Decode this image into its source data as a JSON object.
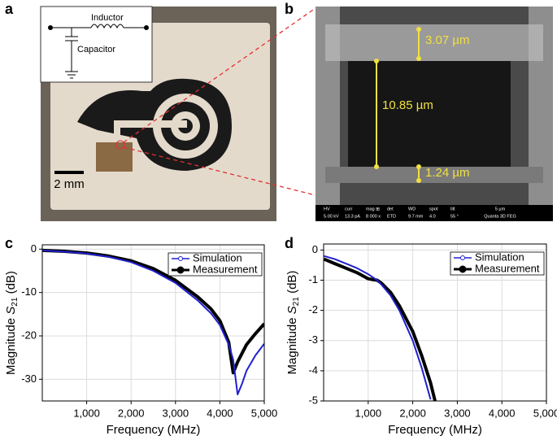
{
  "figure": {
    "panel_labels": [
      "a",
      "b",
      "c",
      "d"
    ],
    "inset": {
      "inductor": "Inductor",
      "capacitor": "Capacitor"
    },
    "scale_bar": "2 mm",
    "sem_labels": [
      "3.07 µm",
      "10.85 µm",
      "1.24 µm"
    ],
    "sem_info": {
      "headers": [
        "HV",
        "curr",
        "mag ⊞",
        "det",
        "WD",
        "spot",
        "tilt"
      ],
      "values": [
        "5.00 kV",
        "13.3 pA",
        "8 000 x",
        "ETD",
        "9.7 mm",
        "4.0",
        "55 °"
      ],
      "scale": "5 µm",
      "instrument": "Quanta 3D FEG"
    }
  },
  "chart_data": [
    {
      "type": "line",
      "xlabel": "Frequency (MHz)",
      "ylabel_prefix": "Magnitude",
      "ylabel_symbol": "S",
      "ylabel_subscript": "21",
      "ylabel_suffix": "(dB)",
      "x": [
        10,
        500,
        1000,
        1500,
        2000,
        2500,
        3000,
        3500,
        3800,
        4000,
        4200,
        4300,
        4400,
        4500,
        4600,
        4800,
        5000
      ],
      "series": [
        {
          "name": "Measurement",
          "color": "#000000",
          "values": [
            -0.3,
            -0.5,
            -0.9,
            -1.6,
            -2.7,
            -4.5,
            -7.2,
            -11,
            -13.8,
            -16.5,
            -21.5,
            -28.5,
            -26,
            -24,
            -22,
            -19.5,
            -17.2
          ]
        },
        {
          "name": "Simulation",
          "color": "#2020d0",
          "values": [
            -0.3,
            -0.6,
            -1.0,
            -1.8,
            -3.0,
            -5,
            -7.8,
            -11.8,
            -14.8,
            -17.5,
            -22,
            -25.5,
            -33.5,
            -31,
            -28,
            -24.5,
            -21.8
          ]
        }
      ],
      "xlim": [
        0,
        5000
      ],
      "ylim": [
        -35,
        1
      ],
      "xticks": [
        {
          "value": 1000,
          "label": "1,000"
        },
        {
          "value": 2000,
          "label": "2,000"
        },
        {
          "value": 3000,
          "label": "3,000"
        },
        {
          "value": 4000,
          "label": "4,000"
        },
        {
          "value": 5000,
          "label": "5,000"
        }
      ],
      "yticks": [
        0,
        -10,
        -20,
        -30
      ],
      "grid": true,
      "legend": "upper-right"
    },
    {
      "type": "line",
      "xlabel": "Frequency (MHz)",
      "ylabel_prefix": "Magnitude",
      "ylabel_symbol": "S",
      "ylabel_subscript": "21",
      "ylabel_suffix": "(dB)",
      "x": [
        10,
        250,
        500,
        750,
        1000,
        1100,
        1200,
        1300,
        1500,
        1700,
        2000,
        2200,
        2400,
        2500
      ],
      "series": [
        {
          "name": "Measurement",
          "color": "#000000",
          "values": [
            -0.3,
            -0.45,
            -0.6,
            -0.75,
            -0.95,
            -0.98,
            -1.0,
            -1.1,
            -1.4,
            -1.85,
            -2.7,
            -3.5,
            -4.4,
            -5.0
          ]
        },
        {
          "name": "Simulation",
          "color": "#2020d0",
          "values": [
            -0.2,
            -0.3,
            -0.45,
            -0.6,
            -0.8,
            -0.9,
            -1.0,
            -1.15,
            -1.5,
            -2.0,
            -3.0,
            -3.9,
            -4.95,
            null
          ]
        }
      ],
      "xlim": [
        0,
        5000
      ],
      "ylim": [
        -5,
        0.2
      ],
      "xticks": [
        {
          "value": 1000,
          "label": "1,000"
        },
        {
          "value": 2000,
          "label": "2,000"
        },
        {
          "value": 3000,
          "label": "3,000"
        },
        {
          "value": 4000,
          "label": "4,000"
        },
        {
          "value": 5000,
          "label": "5,000"
        }
      ],
      "yticks": [
        0,
        -1,
        -2,
        -3,
        -4,
        -5
      ],
      "grid": true,
      "legend": "upper-right"
    }
  ]
}
